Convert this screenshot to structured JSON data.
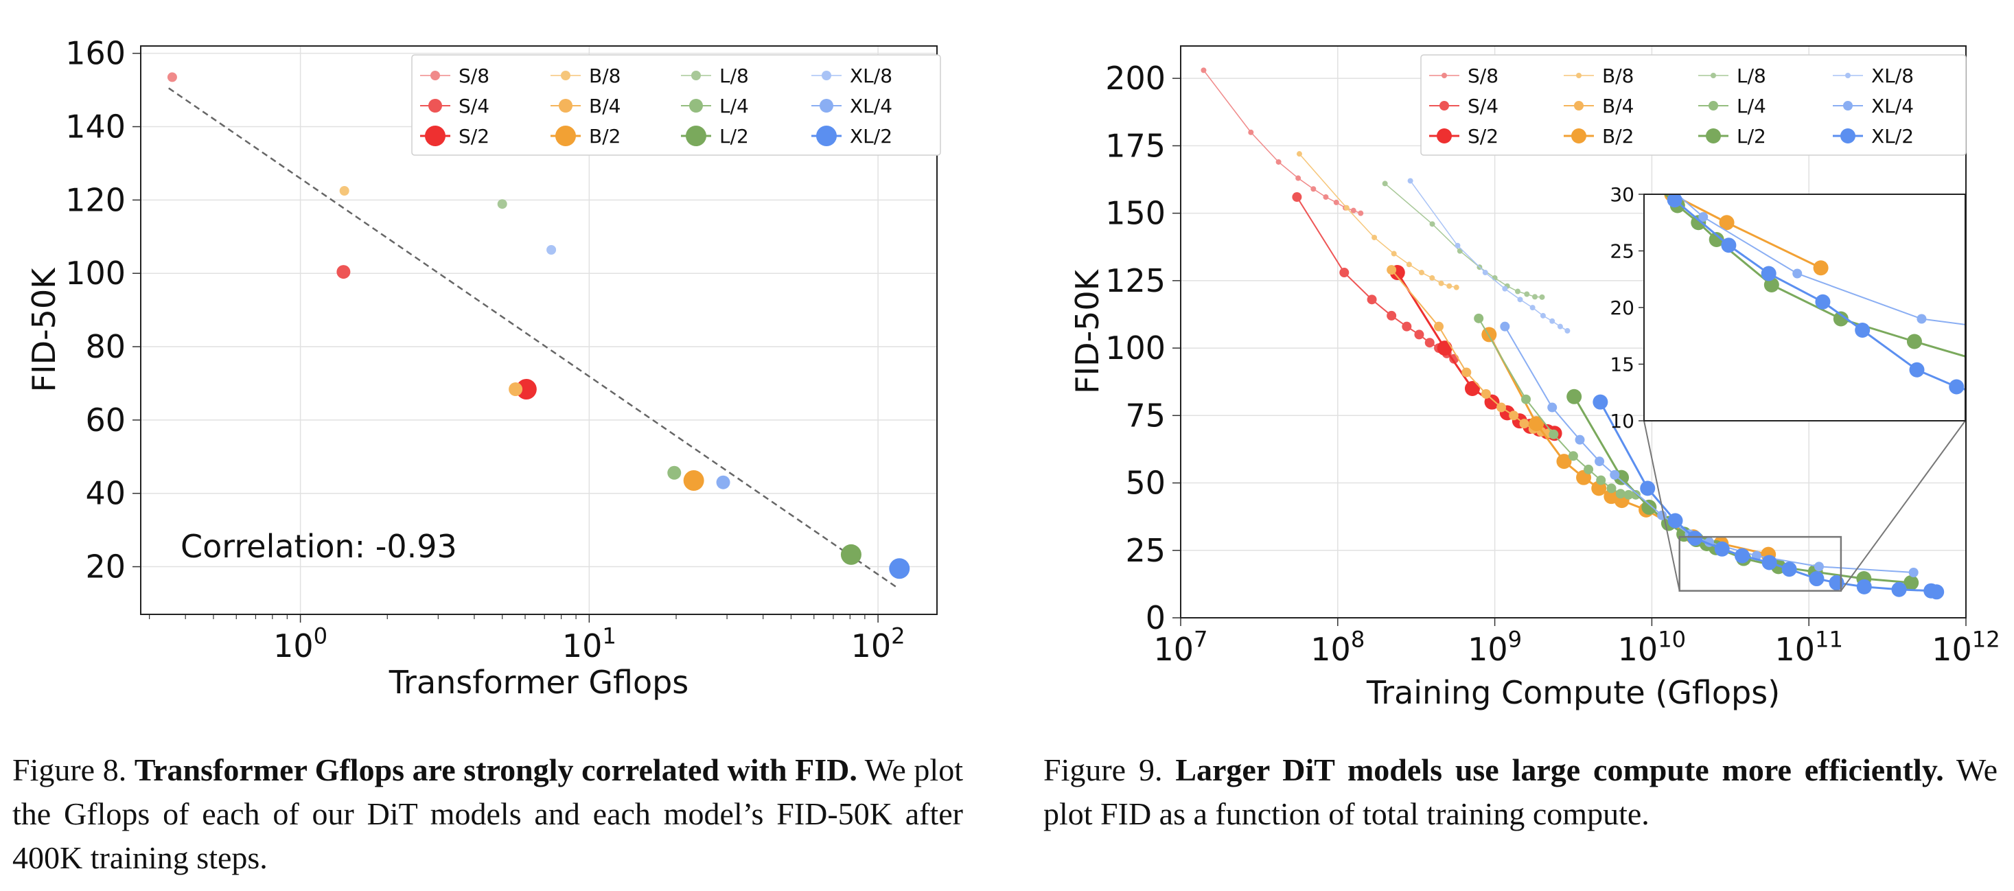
{
  "chart_data": [
    {
      "type": "scatter",
      "xlabel": "Transformer Gflops",
      "ylabel": "FID-50K",
      "xscale": "log",
      "xlim": [
        0.28,
        160
      ],
      "ylim": [
        7,
        162
      ],
      "x_ticks": [
        {
          "value": 1,
          "base": "10",
          "exp": "0"
        },
        {
          "value": 10,
          "base": "10",
          "exp": "1"
        },
        {
          "value": 100,
          "base": "10",
          "exp": "2"
        }
      ],
      "y_ticks": [
        20,
        40,
        60,
        80,
        100,
        120,
        140,
        160
      ],
      "grid": true,
      "legend_position": "top-right",
      "annotation": "Correlation: -0.93",
      "trendline": {
        "style": "dashed",
        "color": "#666666",
        "points": [
          [
            0.35,
            150.5
          ],
          [
            118,
            14
          ]
        ]
      },
      "series": [
        {
          "name": "S/8",
          "color": "#f08a8a",
          "marker": "small",
          "points": [
            {
              "x": 0.36,
              "y": 153.5
            }
          ]
        },
        {
          "name": "S/4",
          "color": "#ee5555",
          "marker": "medium",
          "points": [
            {
              "x": 1.41,
              "y": 100.4
            }
          ]
        },
        {
          "name": "S/2",
          "color": "#ee3030",
          "marker": "large",
          "points": [
            {
              "x": 6.06,
              "y": 68.4
            }
          ]
        },
        {
          "name": "B/8",
          "color": "#f6c67a",
          "marker": "small",
          "points": [
            {
              "x": 1.42,
              "y": 122.5
            }
          ]
        },
        {
          "name": "B/4",
          "color": "#f5b45a",
          "marker": "medium",
          "points": [
            {
              "x": 5.56,
              "y": 68.4
            }
          ]
        },
        {
          "name": "B/2",
          "color": "#f2a134",
          "marker": "large",
          "points": [
            {
              "x": 23.01,
              "y": 43.5
            }
          ]
        },
        {
          "name": "L/8",
          "color": "#a8c898",
          "marker": "small",
          "points": [
            {
              "x": 5.0,
              "y": 118.9
            }
          ]
        },
        {
          "name": "L/4",
          "color": "#94bd7f",
          "marker": "medium",
          "points": [
            {
              "x": 19.7,
              "y": 45.6
            }
          ]
        },
        {
          "name": "L/2",
          "color": "#7aa95c",
          "marker": "large",
          "points": [
            {
              "x": 80.7,
              "y": 23.3
            }
          ]
        },
        {
          "name": "XL/8",
          "color": "#a9c3f6",
          "marker": "small",
          "points": [
            {
              "x": 7.39,
              "y": 106.4
            }
          ]
        },
        {
          "name": "XL/4",
          "color": "#8aaef3",
          "marker": "medium",
          "points": [
            {
              "x": 29.1,
              "y": 43.0
            }
          ]
        },
        {
          "name": "XL/2",
          "color": "#5b8ff0",
          "marker": "large",
          "points": [
            {
              "x": 118.6,
              "y": 19.5
            }
          ]
        }
      ]
    },
    {
      "type": "line",
      "xlabel": "Training Compute (Gflops)",
      "ylabel": "FID-50K",
      "xscale": "log",
      "xlim": [
        10000000,
        1000000000000
      ],
      "ylim": [
        0,
        212
      ],
      "x_ticks": [
        {
          "value": 10000000,
          "base": "10",
          "exp": "7"
        },
        {
          "value": 100000000,
          "base": "10",
          "exp": "8"
        },
        {
          "value": 1000000000,
          "base": "10",
          "exp": "9"
        },
        {
          "value": 10000000000,
          "base": "10",
          "exp": "10"
        },
        {
          "value": 100000000000,
          "base": "10",
          "exp": "11"
        },
        {
          "value": 1000000000000,
          "base": "10",
          "exp": "12"
        }
      ],
      "y_ticks": [
        0,
        25,
        50,
        75,
        100,
        125,
        150,
        175,
        200
      ],
      "grid": true,
      "legend_position": "top-right",
      "inset": {
        "xlim": [
          15000000000,
          160000000000
        ],
        "ylim": [
          10,
          30
        ],
        "y_ticks": [
          10,
          15,
          20,
          25,
          30
        ]
      },
      "series": [
        {
          "name": "S/8",
          "color": "#f08a8a",
          "marker": "small",
          "points": [
            [
              14000000,
              203
            ],
            [
              28000000,
              180
            ],
            [
              42000000,
              169
            ],
            [
              56000000,
              163
            ],
            [
              70000000,
              159
            ],
            [
              84000000,
              156
            ],
            [
              98000000,
              154
            ],
            [
              112000000,
              152
            ],
            [
              126000000,
              151
            ],
            [
              140000000,
              150
            ]
          ]
        },
        {
          "name": "S/4",
          "color": "#ee5555",
          "marker": "medium",
          "points": [
            [
              55000000,
              156
            ],
            [
              110000000,
              128
            ],
            [
              165000000,
              118
            ],
            [
              220000000,
              112
            ],
            [
              275000000,
              108
            ],
            [
              330000000,
              105
            ],
            [
              385000000,
              102
            ],
            [
              440000000,
              100
            ],
            [
              495000000,
              98
            ],
            [
              550000000,
              96
            ]
          ]
        },
        {
          "name": "S/2",
          "color": "#ee3030",
          "marker": "large",
          "points": [
            [
              240000000,
              128
            ],
            [
              480000000,
              100
            ],
            [
              720000000,
              85
            ],
            [
              960000000,
              80
            ],
            [
              1200000000,
              76
            ],
            [
              1440000000,
              73
            ],
            [
              1680000000,
              71
            ],
            [
              1920000000,
              70
            ],
            [
              2160000000,
              69
            ],
            [
              2400000000,
              68.4
            ]
          ]
        },
        {
          "name": "B/8",
          "color": "#f6c67a",
          "marker": "small",
          "points": [
            [
              57000000,
              172
            ],
            [
              114000000,
              152
            ],
            [
              171000000,
              141
            ],
            [
              228000000,
              135
            ],
            [
              285000000,
              131
            ],
            [
              342000000,
              128
            ],
            [
              399000000,
              126
            ],
            [
              456000000,
              124
            ],
            [
              513000000,
              123
            ],
            [
              570000000,
              122.5
            ]
          ]
        },
        {
          "name": "B/4",
          "color": "#f5b45a",
          "marker": "medium",
          "points": [
            [
              220000000,
              129
            ],
            [
              440000000,
              108
            ],
            [
              660000000,
              91
            ],
            [
              880000000,
              83
            ],
            [
              1100000000,
              78
            ],
            [
              1320000000,
              75
            ],
            [
              1540000000,
              72
            ],
            [
              1760000000,
              70
            ],
            [
              1980000000,
              69
            ],
            [
              2200000000,
              68.4
            ]
          ]
        },
        {
          "name": "B/2",
          "color": "#f2a134",
          "marker": "large",
          "points": [
            [
              920000000,
              105
            ],
            [
              1840000000,
              72
            ],
            [
              2760000000,
              58
            ],
            [
              3680000000,
              52
            ],
            [
              4600000000,
              48
            ],
            [
              5520000000,
              45
            ],
            [
              6440000000,
              43.5
            ],
            [
              9200000000,
              40
            ],
            [
              18400000000,
              30
            ],
            [
              27600000000,
              27.5
            ],
            [
              55200000000,
              23.5
            ]
          ]
        },
        {
          "name": "L/8",
          "color": "#a8c898",
          "marker": "small",
          "points": [
            [
              200000000,
              161
            ],
            [
              400000000,
              146
            ],
            [
              600000000,
              136
            ],
            [
              800000000,
              130
            ],
            [
              1000000000,
              126
            ],
            [
              1200000000,
              123
            ],
            [
              1400000000,
              121
            ],
            [
              1600000000,
              120
            ],
            [
              1800000000,
              119
            ],
            [
              2000000000,
              118.9
            ]
          ]
        },
        {
          "name": "L/4",
          "color": "#94bd7f",
          "marker": "medium",
          "points": [
            [
              790000000,
              111
            ],
            [
              1580000000,
              81
            ],
            [
              2370000000,
              68
            ],
            [
              3160000000,
              60
            ],
            [
              3950000000,
              55
            ],
            [
              4740000000,
              51
            ],
            [
              5530000000,
              48
            ],
            [
              6320000000,
              46
            ],
            [
              7110000000,
              45.6
            ],
            [
              7900000000,
              45.6
            ]
          ]
        },
        {
          "name": "L/2",
          "color": "#7aa95c",
          "marker": "large",
          "points": [
            [
              3200000000,
              82
            ],
            [
              6400000000,
              52
            ],
            [
              9600000000,
              41
            ],
            [
              12800000000,
              35
            ],
            [
              16000000000,
              31
            ],
            [
              19200000000,
              29
            ],
            [
              22400000000,
              27.5
            ],
            [
              25600000000,
              26
            ],
            [
              38400000000,
              22
            ],
            [
              64000000000,
              19
            ],
            [
              110000000000,
              17
            ],
            [
              224000000000,
              14.5
            ],
            [
              448000000000,
              13
            ]
          ]
        },
        {
          "name": "XL/8",
          "color": "#a9c3f6",
          "marker": "small",
          "points": [
            [
              290000000,
              162
            ],
            [
              580000000,
              138
            ],
            [
              870000000,
              128
            ],
            [
              1160000000,
              122
            ],
            [
              1450000000,
              118
            ],
            [
              1740000000,
              115
            ],
            [
              2030000000,
              112
            ],
            [
              2320000000,
              110
            ],
            [
              2610000000,
              108
            ],
            [
              2900000000,
              106.4
            ]
          ]
        },
        {
          "name": "XL/4",
          "color": "#8aaef3",
          "marker": "medium",
          "points": [
            [
              1160000000,
              108
            ],
            [
              2320000000,
              78
            ],
            [
              3480000000,
              66
            ],
            [
              4640000000,
              58
            ],
            [
              5800000000,
              53
            ],
            [
              11600000000,
              38
            ],
            [
              17400000000,
              31
            ],
            [
              23200000000,
              28
            ],
            [
              46400000000,
              23
            ],
            [
              116000000000,
              19
            ],
            [
              464000000000,
              16.8
            ]
          ]
        },
        {
          "name": "XL/2",
          "color": "#5b8ff0",
          "marker": "large",
          "points": [
            [
              4700000000,
              80
            ],
            [
              9400000000,
              48
            ],
            [
              14100000000,
              36
            ],
            [
              18800000000,
              29.5
            ],
            [
              28000000000,
              25.5
            ],
            [
              37600000000,
              23
            ],
            [
              56000000000,
              20.5
            ],
            [
              75000000000,
              18
            ],
            [
              112000000000,
              14.5
            ],
            [
              150000000000,
              13
            ],
            [
              225000000000,
              11.5
            ],
            [
              375000000000,
              10.5
            ],
            [
              600000000000,
              10
            ],
            [
              650000000000,
              9.6
            ]
          ]
        }
      ]
    }
  ],
  "captions": {
    "fig8_prefix": "Figure 8. ",
    "fig8_bold": "Transformer Gflops are strongly correlated with FID.",
    "fig8_text": " We plot the Gflops of each of our DiT models and each model’s FID-50K after 400K training steps.",
    "fig9_prefix": "Figure 9.  ",
    "fig9_bold": "Larger DiT models use large compute more efficiently.",
    "fig9_text": " We plot FID as a function of total training compute."
  }
}
